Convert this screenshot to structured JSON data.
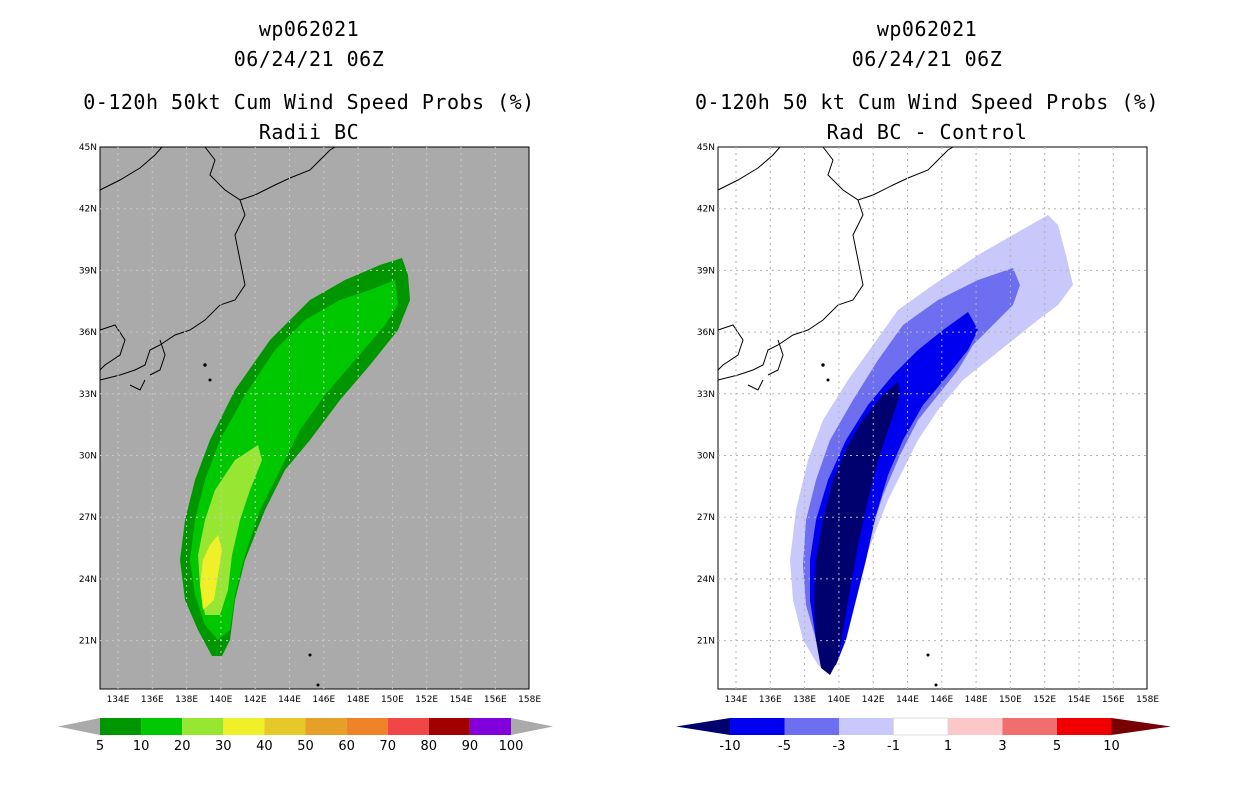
{
  "left": {
    "storm_id": "wp062021",
    "datetime": "06/24/21 06Z",
    "product": "0-120h 50kt Cum Wind Speed Probs (%)",
    "variant": "Radii BC",
    "colorbar": {
      "colors": [
        "#009600",
        "#00c800",
        "#96e632",
        "#f0f028",
        "#e6c828",
        "#e6a028",
        "#f08228",
        "#f04646",
        "#a00000",
        "#8200dc"
      ],
      "labels": [
        "5",
        "10",
        "20",
        "30",
        "40",
        "50",
        "60",
        "70",
        "80",
        "90",
        "100"
      ]
    }
  },
  "right": {
    "storm_id": "wp062021",
    "datetime": "06/24/21 06Z",
    "product": "0-120h 50 kt Cum Wind Speed Probs (%)",
    "variant": "Rad BC - Control",
    "colorbar": {
      "colors": [
        "#00006e",
        "#0000f0",
        "#6e6ef0",
        "#c8c8fa",
        "#ffffff",
        "#fac8c8",
        "#f06e6e",
        "#f00000",
        "#780000"
      ],
      "labels": [
        "-10",
        "-5",
        "-3",
        "-1",
        "1",
        "3",
        "5",
        "10"
      ]
    }
  },
  "axes": {
    "lat_labels": [
      "45N",
      "42N",
      "39N",
      "36N",
      "33N",
      "30N",
      "27N",
      "24N",
      "21N"
    ],
    "lon_labels": [
      "134E",
      "136E",
      "138E",
      "140E",
      "142E",
      "144E",
      "146E",
      "148E",
      "150E",
      "152E",
      "154E",
      "156E",
      "158E"
    ]
  },
  "map_colors": {
    "left_background": "#aaaaaa",
    "right_background": "#ffffff"
  }
}
